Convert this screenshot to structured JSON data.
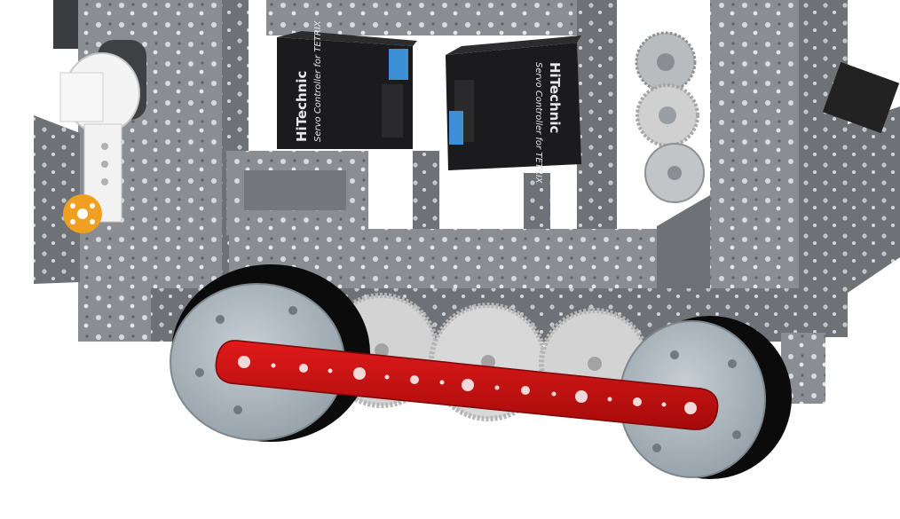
{
  "scene": {
    "subject": "robot-cad-render",
    "colors": {
      "background": "#ffffff",
      "frame": "#8a8d91",
      "frame_dark": "#5c5f63",
      "controller": "#1b1b1d",
      "connector": "#3d8fd6",
      "red_beam": "#cc0f0f",
      "wheel_hub": "#a9b3ba",
      "tire": "#0b0b0b",
      "gear": "#cfcfcf",
      "orange_hub": "#f0a020",
      "motor_white": "#f4f4f4"
    }
  },
  "controllers": [
    {
      "brand": "HiTechnic",
      "model": "Servo Controller for TETRIX"
    },
    {
      "brand": "HiTechnic",
      "model": "Servo Controller for TETRIX"
    }
  ]
}
